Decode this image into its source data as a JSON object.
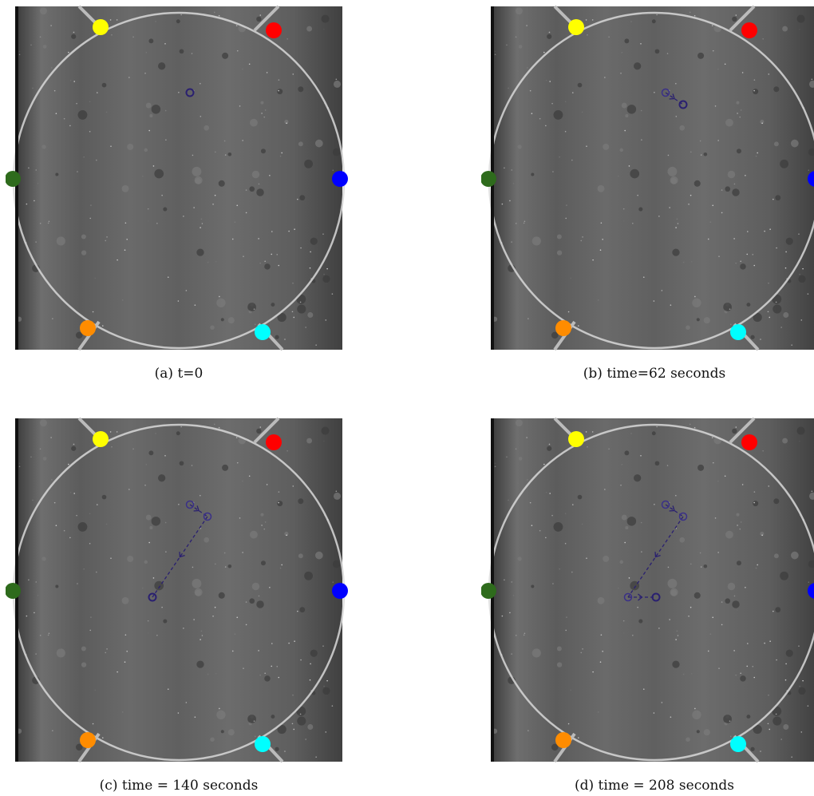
{
  "figure": {
    "panels": [
      {
        "caption": "(a) t=0"
      },
      {
        "caption": "(b) time=62 seconds"
      },
      {
        "caption": "(c) time = 140 seconds"
      },
      {
        "caption": "(d) time = 208 seconds"
      }
    ]
  }
}
